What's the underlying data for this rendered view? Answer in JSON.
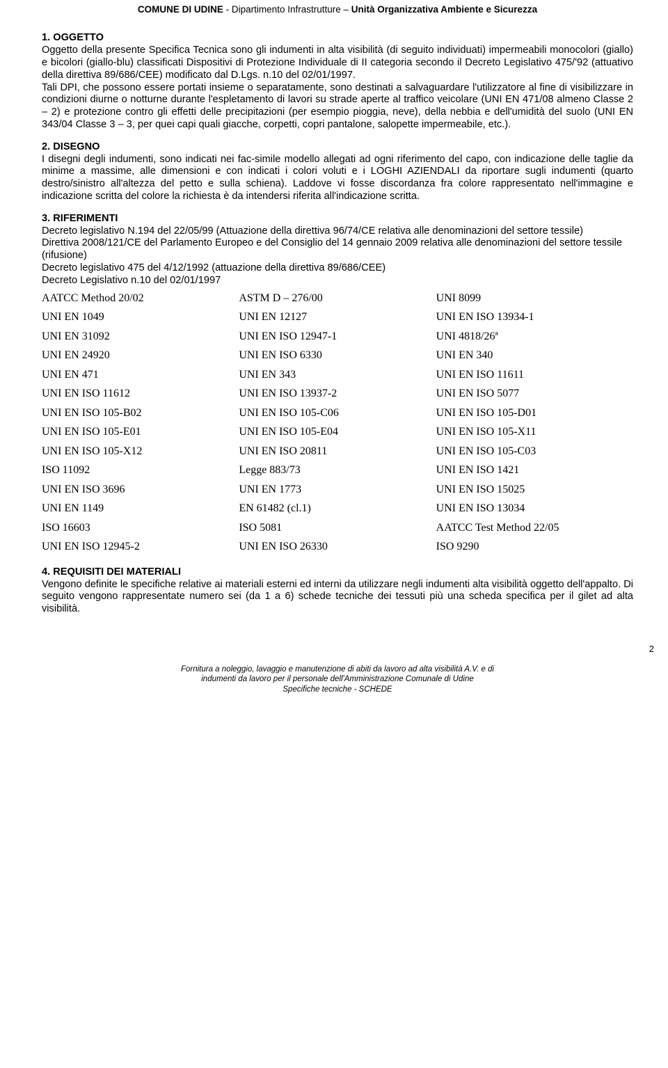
{
  "header": {
    "left_bold": "COMUNE DI UDINE",
    "middle": " - Dipartimento Infrastrutture – ",
    "right_bold": "Unità Organizzativa Ambiente e Sicurezza"
  },
  "s1": {
    "heading": "1. OGGETTO",
    "text": "Oggetto della presente Specifica Tecnica sono gli indumenti in alta visibilità (di seguito individuati) impermeabili monocolori (giallo) e bicolori (giallo-blu) classificati Dispositivi di Protezione Individuale di II categoria secondo il Decreto Legislativo 475/'92 (attuativo della direttiva 89/686/CEE) modificato dal D.Lgs. n.10 del 02/01/1997.",
    "text2": "Tali DPI, che possono essere portati insieme o separatamente, sono destinati a salvaguardare l'utilizzatore al fine di visibilizzare in condizioni diurne o notturne durante l'espletamento di lavori su strade aperte al traffico veicolare (UNI EN 471/08 almeno Classe 2 – 2) e protezione contro gli effetti delle precipitazioni (per esempio pioggia, neve), della nebbia e dell'umidità del suolo (UNI EN 343/04 Classe 3 – 3, per quei capi quali giacche, corpetti, copri pantalone, salopette impermeabile, etc.)."
  },
  "s2": {
    "heading": "2. DISEGNO",
    "text": "I disegni degli indumenti, sono indicati nei fac-simile modello allegati ad ogni riferimento del capo, con indicazione delle taglie da minime a massime, alle dimensioni e con indicati i colori voluti e i LOGHI AZIENDALI da riportare sugli indumenti (quarto destro/sinistro all'altezza del petto e sulla schiena). Laddove vi fosse discordanza fra colore rappresentato nell'immagine e indicazione scritta del colore la richiesta è da intendersi riferita all'indicazione scritta."
  },
  "s3": {
    "heading": "3. RIFERIMENTI",
    "lines": [
      "Decreto legislativo N.194 del 22/05/99 (Attuazione della direttiva 96/74/CE relativa alle denominazioni del settore tessile)",
      "Direttiva 2008/121/CE del Parlamento Europeo e del Consiglio del 14 gennaio 2009 relativa alle denominazioni del settore tessile (rifusione)",
      "Decreto legislativo 475 del 4/12/1992 (attuazione della direttiva 89/686/CEE)",
      "Decreto Legislativo n.10 del 02/01/1997"
    ]
  },
  "standards": [
    [
      "AATCC Method 20/02",
      "ASTM D – 276/00",
      "UNI 8099"
    ],
    [
      "UNI EN 1049",
      "UNI EN 12127",
      "UNI EN ISO 13934-1"
    ],
    [
      "UNI EN 31092",
      "UNI EN ISO 12947-1",
      "UNI 4818/26ª"
    ],
    [
      "UNI EN 24920",
      "UNI EN ISO 6330",
      "UNI EN 340"
    ],
    [
      "UNI EN 471",
      "UNI EN 343",
      "UNI EN ISO 11611"
    ],
    [
      "UNI EN ISO 11612",
      "UNI EN ISO 13937-2",
      "UNI EN ISO 5077"
    ],
    [
      "UNI EN ISO 105-B02",
      "UNI EN ISO 105-C06",
      "UNI EN ISO 105-D01"
    ],
    [
      "UNI EN ISO 105-E01",
      "UNI EN ISO 105-E04",
      "UNI EN ISO 105-X11"
    ],
    [
      "UNI EN ISO 105-X12",
      "UNI EN ISO 20811",
      "UNI EN ISO 105-C03"
    ],
    [
      "ISO 11092",
      "Legge 883/73",
      "UNI EN ISO 1421"
    ],
    [
      "UNI EN ISO 3696",
      "UNI EN 1773",
      "UNI EN ISO 15025"
    ],
    [
      "UNI EN 1149",
      "EN 61482 (cl.1)",
      "UNI EN ISO 13034"
    ],
    [
      "ISO 16603",
      "ISO 5081",
      "AATCC  Test Method 22/05"
    ],
    [
      "UNI EN ISO 12945-2",
      "UNI EN ISO 26330",
      "ISO 9290"
    ]
  ],
  "s4": {
    "heading": "4. REQUISITI DEI MATERIALI",
    "text": "Vengono definite le specifiche relative ai materiali esterni ed interni da utilizzare negli indumenti alta visibilità oggetto dell'appalto. Di seguito vengono rappresentate numero sei (da 1 a 6) schede tecniche dei tessuti più una scheda specifica per il gilet ad alta visibilità."
  },
  "footer": {
    "line1": "Fornitura a noleggio, lavaggio e manutenzione di abiti da lavoro ad alta visibilità A.V. e di",
    "line2": "indumenti da lavoro per il personale dell'Amministrazione Comunale di Udine",
    "line3": "Specifiche tecniche - SCHEDE",
    "page": "2"
  }
}
